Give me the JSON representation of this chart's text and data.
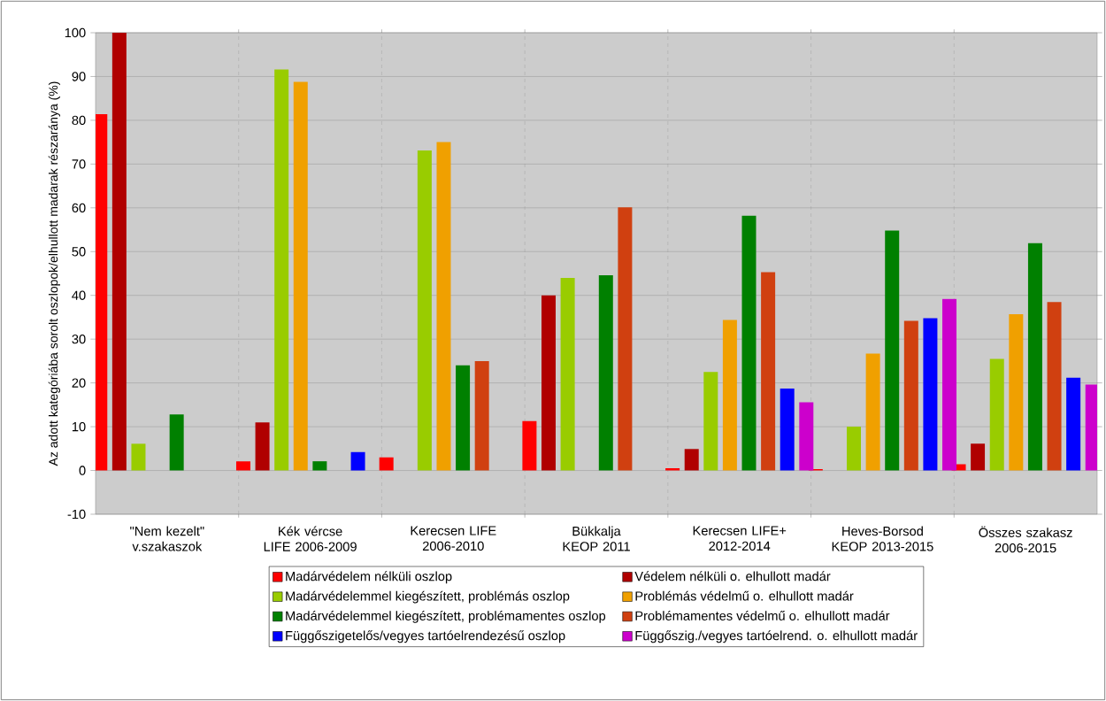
{
  "chart_data": {
    "type": "bar",
    "ylabel": "Az adott kategóriába sorolt oszlopok/elhullott madarak részaránya (%)",
    "categories": [
      "\"Nem kezelt\" v.szakaszok",
      "Kék vércse LIFE 2006-2009",
      "Kerecsen LIFE 2006-2010",
      "Bükkalja KEOP 2011",
      "Kerecsen LIFE+ 2012-2014",
      "Heves-Borsod KEOP 2013-2015",
      "Összes szakasz 2006-2015"
    ],
    "series": [
      {
        "name": "Madárvédelem nélküli oszlop",
        "color": "#ff0000",
        "values": [
          81.4,
          2.1,
          3.0,
          11.3,
          0.5,
          0.3,
          1.4
        ]
      },
      {
        "name": "Védelem nélküli o. elhullott madár",
        "color": "#b00000",
        "values": [
          100,
          11,
          0,
          40,
          4.9,
          0,
          6.1
        ]
      },
      {
        "name": "Madárvédelemmel kiegészített, problémás oszlop",
        "color": "#99cc00",
        "values": [
          6.1,
          91.6,
          73.1,
          44,
          22.5,
          10,
          25.5
        ]
      },
      {
        "name": "Problémás védelmű o. elhullott madár",
        "color": "#f0a000",
        "values": [
          0,
          88.8,
          75,
          0,
          34.4,
          26.7,
          35.7
        ]
      },
      {
        "name": "Madárvédelemmel kiegészített, problémamentes oszlop",
        "color": "#008000",
        "values": [
          12.8,
          2.1,
          24,
          44.6,
          58.2,
          54.8,
          51.9
        ]
      },
      {
        "name": "Problémamentes védelmű o. elhullott madár",
        "color": "#d04010",
        "values": [
          0,
          0,
          25,
          60.1,
          45.3,
          34.2,
          38.5
        ]
      },
      {
        "name": "Függőszigetelős/vegyes tartóelrendezésű oszlop",
        "color": "#0000ff",
        "values": [
          0,
          4.2,
          0,
          0,
          18.7,
          34.8,
          21.2
        ]
      },
      {
        "name": "Függőszig./vegyes tartóelrend. o. elhullott madár",
        "color": "#cc00cc",
        "values": [
          0,
          0,
          0,
          0,
          15.6,
          39.2,
          19.6
        ]
      }
    ],
    "ylim": [
      -10,
      100
    ],
    "yticks": [
      -10,
      0,
      10,
      20,
      30,
      40,
      50,
      60,
      70,
      80,
      90,
      100
    ],
    "grid": true,
    "legend": "bottom"
  }
}
